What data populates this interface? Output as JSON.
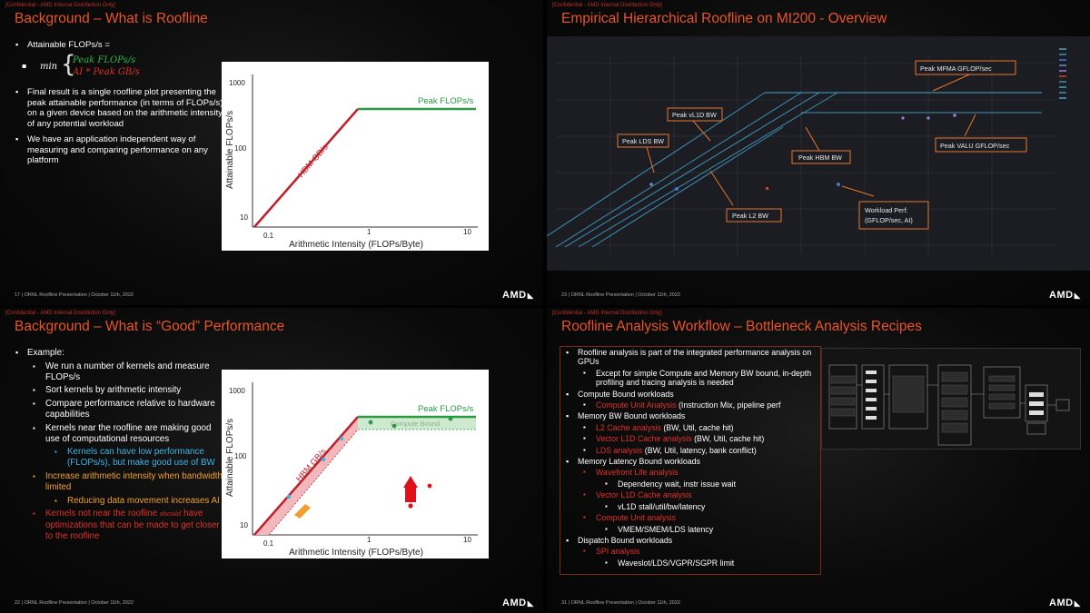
{
  "confidential": "[Confidential - AMD Internal Distribution Only]",
  "slide1": {
    "title": "Background – What is Roofline",
    "bullets": {
      "attainable": "Attainable FLOPs/s =",
      "min": "min",
      "formula_peak": "Peak FLOPs/s",
      "formula_ai": "AI * Peak GB/s",
      "final": "Final result is a single roofline plot presenting the peak attainable performance (in terms of FLOPs/s) on a given device based on the arithmetic intensity of any potential workload",
      "independent": "We have an application independent way of measuring and comparing performance on any platform"
    },
    "footer": "17  |  ORNL Roofline Presentation | October 11th, 2022",
    "chart": {
      "ylabel": "Attainable FLOPs/s",
      "xlabel": "Arithmetic Intensity (FLOPs/Byte)",
      "yticks": [
        "1000",
        "100",
        "10"
      ],
      "xticks": [
        "0.1",
        "1",
        "10"
      ],
      "peak_label": "Peak FLOPs/s",
      "hbm_label": "HBM GB/s"
    }
  },
  "slide2": {
    "title": "Empirical Hierarchical Roofline on MI200 - Overview",
    "footer": "23  |  ORNL Roofline Presentation | October 11th, 2022",
    "callouts": {
      "mfma": "Peak MFMA GFLOP/sec",
      "vl1d": "Peak vL1D BW",
      "lds": "Peak LDS BW",
      "hbm": "Peak HBM BW",
      "valu": "Peak VALU GFLOP/sec",
      "l2": "Peak L2 BW",
      "workload_1": "Workload Perf:",
      "workload_2": "(GFLOP/sec, AI)"
    }
  },
  "slide3": {
    "title": "Background – What is “Good” Performance",
    "footer": "22  |  ORNL Roofline Presentation | October 11th, 2022",
    "bullets": {
      "example": "Example:",
      "run": "We run a number of kernels and measure FLOPs/s",
      "sort": "Sort kernels by arithmetic intensity",
      "compare": "Compare performance relative to hardware capabilities",
      "near": "Kernels near the roofline are making good use of computational resources",
      "low": "Kernels can have low performance (FLOPs/s), but make good use of BW",
      "increase": "Increase arithmetic intensity when bandwidth limited",
      "reducing": "Reducing data movement increases AI",
      "not_near_1": "Kernels not near the roofline",
      "should": "should",
      "not_near_2": "have optimizations that can be made to get closer to the roofline"
    },
    "chart": {
      "ylabel": "Attainable FLOPs/s",
      "xlabel": "Arithmetic Intensity (FLOPs/Byte)",
      "yticks": [
        "1000",
        "100",
        "10"
      ],
      "xticks": [
        "0.1",
        "1",
        "10"
      ],
      "peak_label": "Peak FLOPs/s",
      "hbm_label": "HBM GB/s",
      "compute_bound": "Compute Bound"
    }
  },
  "slide4": {
    "title": "Roofline Analysis Workflow – Bottleneck Analysis Recipes",
    "footer": "31  |  ORNL Roofline Presentation | October 11th, 2022",
    "bullets": {
      "intro": "Roofline analysis is part of the integrated performance analysis on GPUs",
      "except": "Except for simple Compute and Memory BW bound, in-depth profiling and tracing analysis is needed",
      "compute_bound": "Compute Bound workloads",
      "cu_analysis": "Compute Unit Analysis",
      "cu_detail": " (Instruction Mix, pipeline perf",
      "mem_bw": "Memory BW Bound workloads",
      "l2": "L2 Cache analysis",
      "l2_detail": " (BW, Util, cache hit)",
      "vl1d": "Vector L1D Cache analysis",
      "vl1d_detail": " (BW, Util, cache hit)",
      "lds": "LDS analysis",
      "lds_detail": " (BW, Util, latency, bank conflict)",
      "mem_lat": "Memory Latency Bound workloads",
      "wavefront": "Wavefront Life analysis",
      "dep": "Dependency wait, instr issue wait",
      "vl1d_lat": "Vector L1D Cache analysis",
      "vl1d_lat_detail": "vL1D stall/util/bw/latency",
      "cu_lat": "Compute Unit analysis",
      "cu_lat_detail": "VMEM/SMEM/LDS latency",
      "dispatch": "Dispatch Bound workloads",
      "spi": "SPI analysis",
      "spi_detail": "Waveslot/LDS/VGPR/SGPR limit"
    }
  },
  "amd": "AMD",
  "colors": {
    "title": "#e8542b",
    "green": "#34b34f",
    "red": "#e0302a",
    "blue": "#3fb4e6",
    "orange": "#f0a030"
  }
}
